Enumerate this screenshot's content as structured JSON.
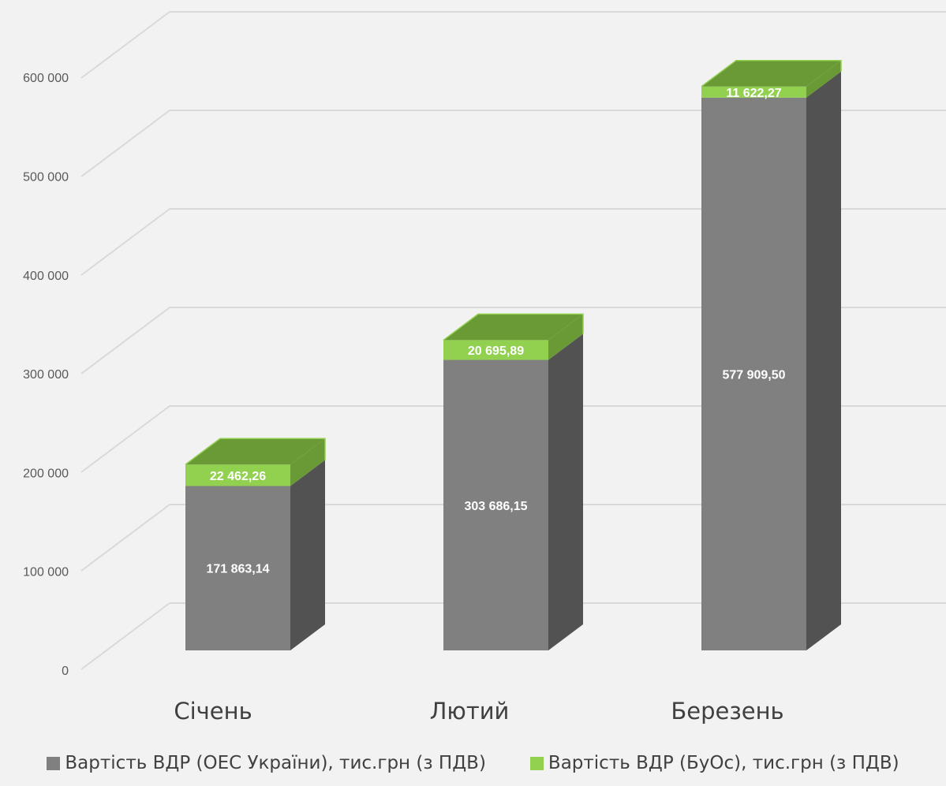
{
  "chart_data": {
    "type": "bar",
    "stacked": true,
    "three_d": true,
    "categories": [
      "Січень",
      "Лютий",
      "Березень"
    ],
    "series": [
      {
        "name": "Вартість ВДР (ОЕС України), тис.грн (з ПДВ)",
        "values": [
          171863.14,
          303686.15,
          577909.5
        ],
        "labels": [
          "171 863,14",
          "303 686,15",
          "577 909,50"
        ],
        "color": "#808080",
        "side_color": "#525252",
        "top_color": "#6b6b6b"
      },
      {
        "name": "Вартість ВДР (БуОс), тис.грн (з ПДВ)",
        "values": [
          22462.26,
          20695.89,
          11622.27
        ],
        "labels": [
          "22 462,26",
          "20 695,89",
          "11 622,27"
        ],
        "color": "#92d050",
        "side_color": "#6a9a35",
        "top_color": "#6a9a35"
      }
    ],
    "yticks": [
      "0",
      "100 000",
      "200 000",
      "300 000",
      "400 000",
      "500 000",
      "600 000"
    ],
    "ylim": [
      0,
      600000
    ],
    "grid": true,
    "legend_position": "bottom",
    "title": "",
    "xlabel": "",
    "ylabel": ""
  }
}
